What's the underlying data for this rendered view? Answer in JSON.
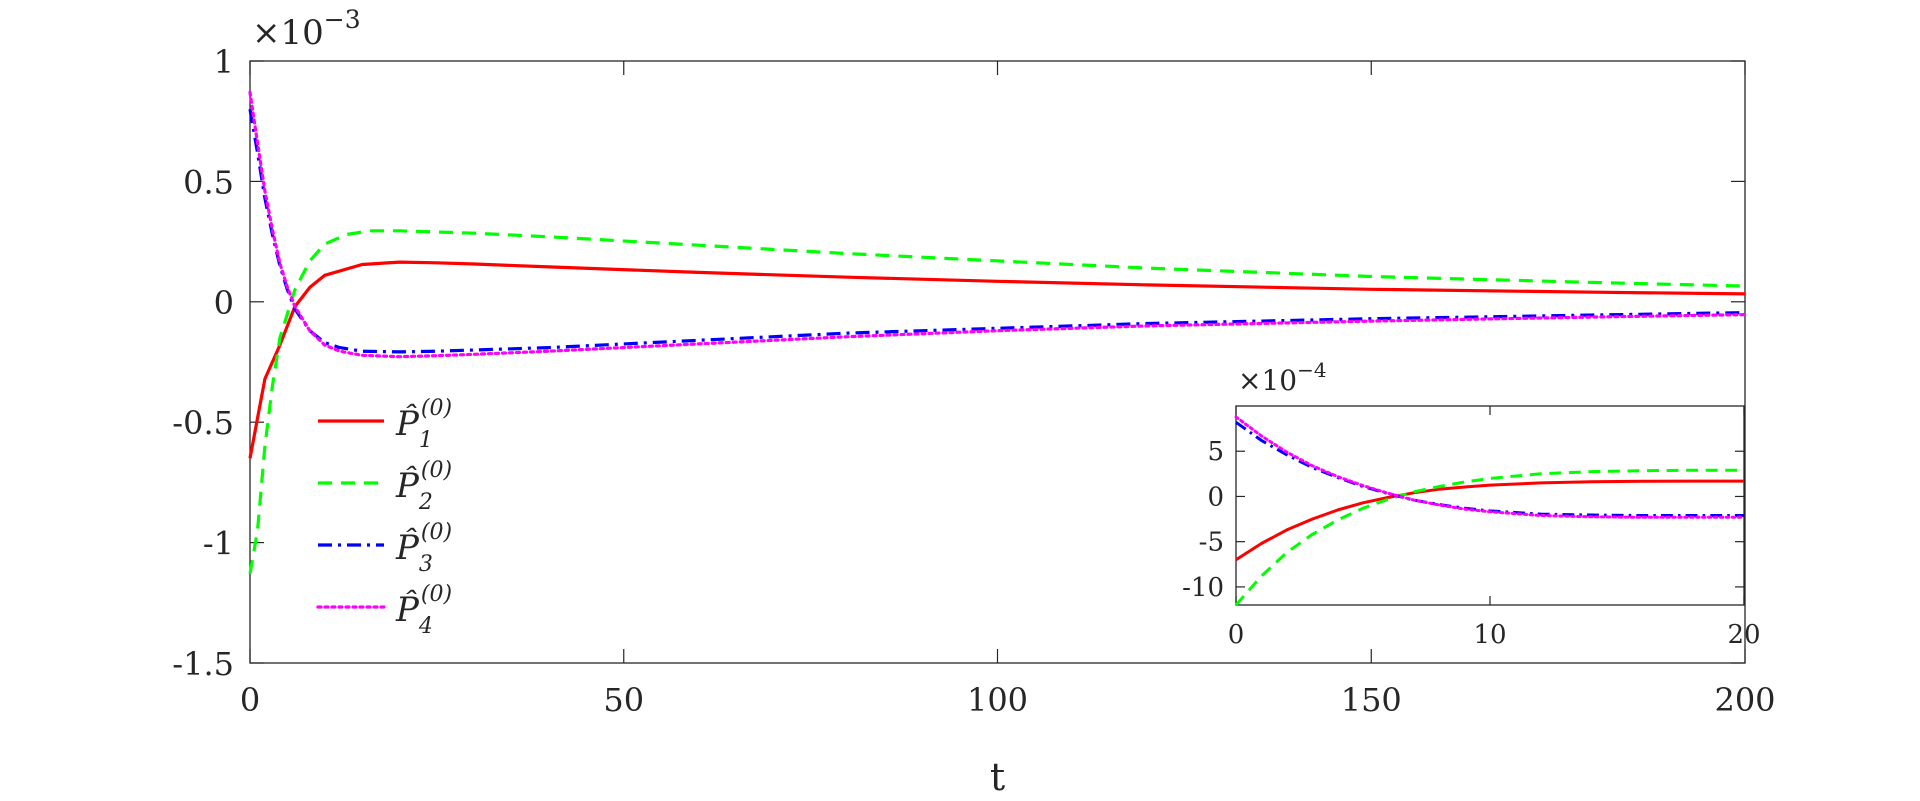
{
  "chart_data": [
    {
      "type": "line",
      "xlabel": "t",
      "ylabel": "",
      "xlim": [
        0,
        200
      ],
      "ylim": [
        -1.5,
        1
      ],
      "y_multiplier": "×10^{-3}",
      "y_multiplier_base": "×10",
      "y_multiplier_exp": "−3",
      "xticks": [
        0,
        50,
        100,
        150,
        200
      ],
      "xtick_labels": [
        "0",
        "50",
        "100",
        "150",
        "200"
      ],
      "yticks": [
        -1.5,
        -1,
        -0.5,
        0,
        0.5,
        1
      ],
      "ytick_labels": [
        "-1.5",
        "-1",
        "-0.5",
        "0",
        "0.5",
        "1"
      ],
      "grid": false,
      "legend_position": "center-left",
      "series": [
        {
          "name": "P̂1(0)",
          "legend_base": "P̂",
          "legend_sub": "1",
          "legend_sup": "(0)",
          "color": "#ff0000",
          "style": "solid",
          "x": [
            0,
            2,
            4,
            6,
            8,
            10,
            15,
            20,
            25,
            30,
            40,
            60,
            80,
            100,
            120,
            150,
            180,
            200
          ],
          "y": [
            -0.65,
            -0.32,
            -0.18,
            -0.02,
            0.06,
            0.11,
            0.155,
            0.165,
            0.162,
            0.157,
            0.145,
            0.122,
            0.102,
            0.085,
            0.07,
            0.052,
            0.04,
            0.033
          ]
        },
        {
          "name": "P̂2(0)",
          "legend_base": "P̂",
          "legend_sub": "2",
          "legend_sup": "(0)",
          "color": "#00ff00",
          "style": "dashed",
          "x": [
            0,
            1,
            2,
            3,
            4,
            6,
            8,
            10,
            13,
            16,
            20,
            25,
            30,
            40,
            60,
            80,
            100,
            120,
            150,
            180,
            200
          ],
          "y": [
            -1.13,
            -0.95,
            -0.6,
            -0.35,
            -0.15,
            0.05,
            0.17,
            0.24,
            0.28,
            0.295,
            0.295,
            0.29,
            0.285,
            0.27,
            0.235,
            0.2,
            0.17,
            0.14,
            0.105,
            0.08,
            0.065
          ]
        },
        {
          "name": "P̂3(0)",
          "legend_base": "P̂",
          "legend_sub": "3",
          "legend_sup": "(0)",
          "color": "#0000ff",
          "style": "dashdot",
          "x": [
            0,
            1,
            2,
            3,
            4,
            5,
            6,
            8,
            10,
            12,
            15,
            20,
            25,
            30,
            40,
            60,
            80,
            100,
            120,
            150,
            180,
            200
          ],
          "y": [
            0.8,
            0.62,
            0.43,
            0.28,
            0.15,
            0.05,
            -0.03,
            -0.12,
            -0.17,
            -0.19,
            -0.205,
            -0.208,
            -0.205,
            -0.2,
            -0.19,
            -0.16,
            -0.13,
            -0.11,
            -0.09,
            -0.07,
            -0.055,
            -0.045
          ]
        },
        {
          "name": "P̂4(0)",
          "legend_base": "P̂",
          "legend_sub": "4",
          "legend_sup": "(0)",
          "color": "#ff00ff",
          "style": "dotted",
          "x": [
            0,
            1,
            2,
            3,
            4,
            5,
            6,
            8,
            10,
            12,
            15,
            20,
            25,
            30,
            40,
            60,
            80,
            100,
            120,
            150,
            180,
            200
          ],
          "y": [
            0.87,
            0.66,
            0.46,
            0.3,
            0.16,
            0.06,
            -0.02,
            -0.12,
            -0.18,
            -0.205,
            -0.222,
            -0.228,
            -0.224,
            -0.218,
            -0.205,
            -0.175,
            -0.145,
            -0.12,
            -0.1,
            -0.08,
            -0.063,
            -0.053
          ]
        }
      ]
    },
    {
      "type": "line",
      "xlabel": "",
      "ylabel": "",
      "xlim": [
        0,
        20
      ],
      "ylim": [
        -12,
        10
      ],
      "y_multiplier": "×10^{-4}",
      "y_multiplier_base": "×10",
      "y_multiplier_exp": "−4",
      "xticks": [
        0,
        10,
        20
      ],
      "xtick_labels": [
        "0",
        "10",
        "20"
      ],
      "yticks": [
        -10,
        -5,
        0,
        5
      ],
      "ytick_labels": [
        "-10",
        "-5",
        "0",
        "5"
      ],
      "grid": false,
      "series": [
        {
          "color": "#ff0000",
          "style": "solid",
          "x": [
            0,
            1,
            2,
            3,
            4,
            5,
            6,
            7,
            8,
            9,
            10,
            12,
            14,
            16,
            18,
            20
          ],
          "y": [
            -7,
            -5.2,
            -3.7,
            -2.5,
            -1.5,
            -0.7,
            -0.1,
            0.4,
            0.8,
            1.05,
            1.25,
            1.5,
            1.62,
            1.68,
            1.7,
            1.7
          ]
        },
        {
          "color": "#00ff00",
          "style": "dashed",
          "x": [
            0,
            1,
            2,
            3,
            4,
            5,
            6,
            7,
            8,
            9,
            10,
            12,
            14,
            16,
            18,
            20
          ],
          "y": [
            -12,
            -8.8,
            -6.2,
            -4.2,
            -2.6,
            -1.3,
            -0.3,
            0.5,
            1.1,
            1.6,
            2.0,
            2.5,
            2.75,
            2.85,
            2.9,
            2.9
          ]
        },
        {
          "color": "#0000ff",
          "style": "dashdot",
          "x": [
            0,
            1,
            2,
            3,
            4,
            5,
            6,
            7,
            8,
            9,
            10,
            12,
            14,
            16,
            18,
            20
          ],
          "y": [
            8.2,
            6.2,
            4.6,
            3.2,
            2.1,
            1.1,
            0.3,
            -0.4,
            -0.9,
            -1.3,
            -1.6,
            -1.95,
            -2.05,
            -2.1,
            -2.1,
            -2.1
          ]
        },
        {
          "color": "#ff00ff",
          "style": "dotted",
          "x": [
            0,
            1,
            2,
            3,
            4,
            5,
            6,
            7,
            8,
            9,
            10,
            12,
            14,
            16,
            18,
            20
          ],
          "y": [
            8.8,
            6.7,
            4.9,
            3.4,
            2.2,
            1.2,
            0.35,
            -0.4,
            -0.95,
            -1.4,
            -1.7,
            -2.1,
            -2.25,
            -2.3,
            -2.3,
            -2.3
          ]
        }
      ]
    }
  ]
}
